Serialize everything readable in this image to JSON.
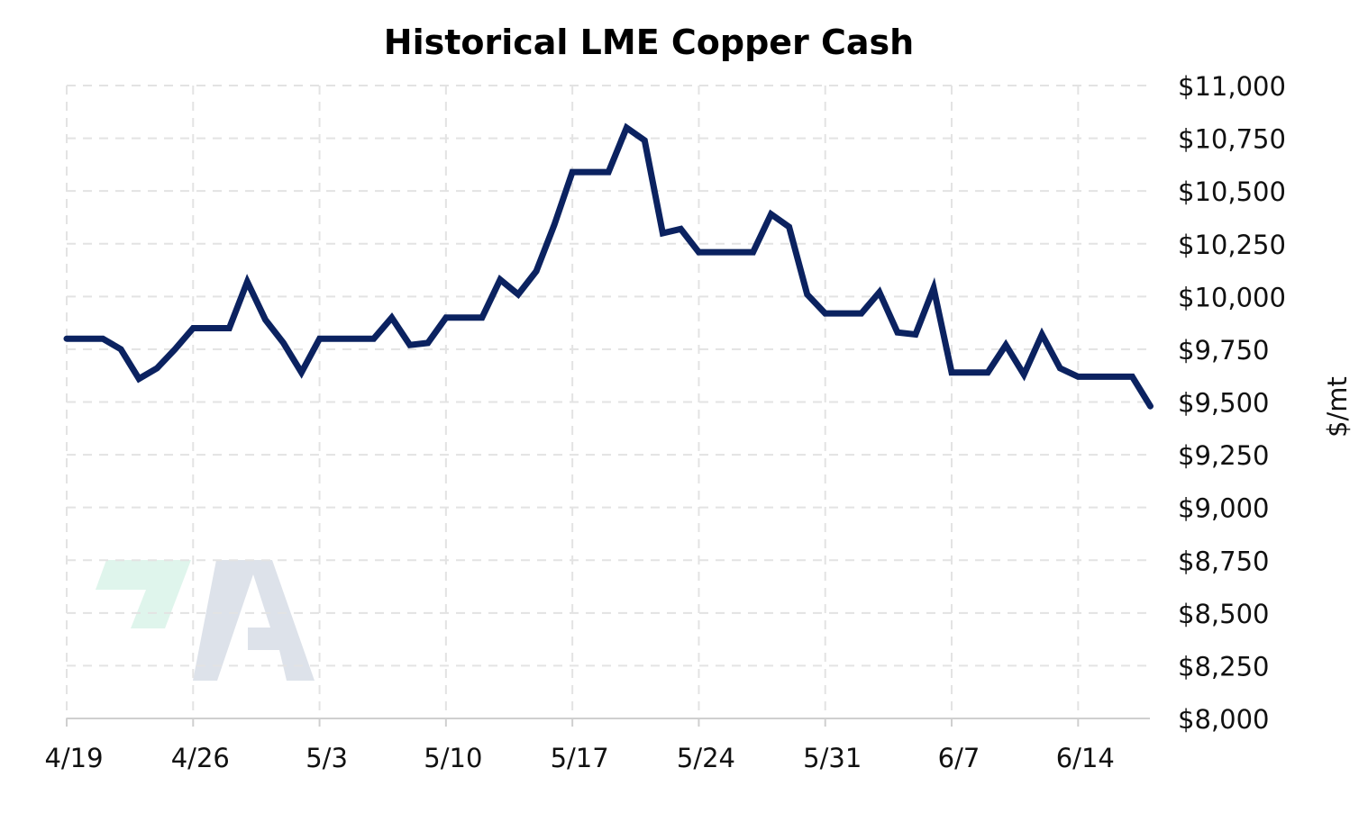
{
  "colors": {
    "line": "#0b2260",
    "grid": "#e3e3e3",
    "logo_green": "#dff5ec",
    "logo_gray": "#dde2ea"
  },
  "logo": {
    "icon": "a-brand-logo-icon"
  },
  "chart_data": {
    "type": "line",
    "title": "Historical LME Copper Cash",
    "ylabel": "$/mt",
    "xlabel": "",
    "ylim": [
      8000,
      11000
    ],
    "y_axis_position": "right",
    "grid": true,
    "x_ticks": [
      "4/19",
      "4/26",
      "5/3",
      "5/10",
      "5/17",
      "5/24",
      "5/31",
      "6/7",
      "6/14"
    ],
    "y_ticks": [
      "$11,000",
      "$10,750",
      "$10,500",
      "$10,250",
      "$10,000",
      "$9,750",
      "$9,500",
      "$9,250",
      "$9,000",
      "$8,750",
      "$8,500",
      "$8,250",
      "$8,000"
    ],
    "series": [
      {
        "name": "",
        "x": [
          "4/19",
          "4/20",
          "4/21",
          "4/22",
          "4/23",
          "4/24",
          "4/25",
          "4/26",
          "4/27",
          "4/28",
          "4/29",
          "4/30",
          "5/1",
          "5/2",
          "5/3",
          "5/4",
          "5/5",
          "5/6",
          "5/7",
          "5/8",
          "5/9",
          "5/10",
          "5/11",
          "5/12",
          "5/13",
          "5/14",
          "5/15",
          "5/16",
          "5/17",
          "5/18",
          "5/19",
          "5/20",
          "5/21",
          "5/22",
          "5/23",
          "5/24",
          "5/25",
          "5/26",
          "5/27",
          "5/28",
          "5/29",
          "5/30",
          "5/31",
          "6/1",
          "6/2",
          "6/3",
          "6/4",
          "6/5",
          "6/6",
          "6/7",
          "6/8",
          "6/9",
          "6/10",
          "6/11",
          "6/12",
          "6/13",
          "6/14",
          "6/15",
          "6/16",
          "6/17",
          "6/18"
        ],
        "values": [
          9800,
          9800,
          9800,
          9750,
          9610,
          9660,
          9750,
          9850,
          9850,
          9850,
          10070,
          9890,
          9780,
          9640,
          9800,
          9800,
          9800,
          9800,
          9900,
          9770,
          9780,
          9900,
          9900,
          9900,
          10080,
          10010,
          10120,
          10340,
          10590,
          10590,
          10590,
          10800,
          10740,
          10300,
          10320,
          10210,
          10210,
          10210,
          10210,
          10390,
          10330,
          10010,
          9920,
          9920,
          9920,
          10020,
          9830,
          9820,
          10040,
          9640,
          9640,
          9640,
          9770,
          9630,
          9820,
          9660,
          9620,
          9620,
          9620,
          9620,
          9480
        ]
      }
    ]
  }
}
